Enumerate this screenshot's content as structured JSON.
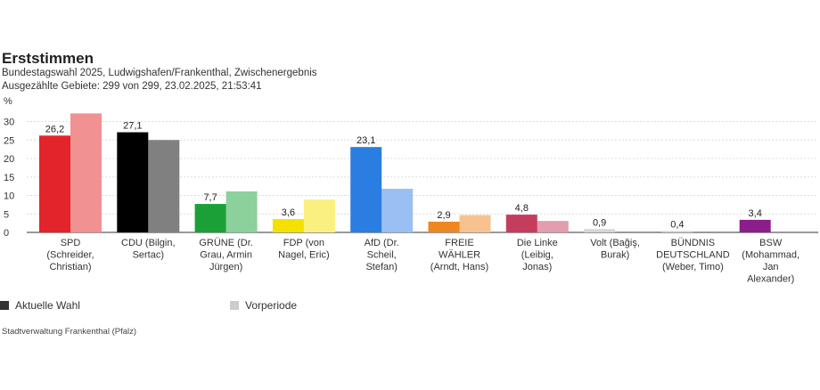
{
  "header": {
    "title": "Erststimmen",
    "subtitle": "Bundestagswahl 2025, Ludwigshafen/Frankenthal, Zwischenergebnis",
    "subtitle2": "Ausgezählte Gebiete: 299 von 299, 23.02.2025, 21:53:41"
  },
  "legend": {
    "current_label": "Aktuelle Wahl",
    "previous_label": "Vorperiode",
    "current_color": "#333333",
    "previous_color": "#cccccc"
  },
  "source": "Stadtverwaltung Frankenthal (Pfalz)",
  "chart_data": {
    "type": "bar",
    "unit": "%",
    "ylim": [
      0,
      33
    ],
    "yticks": [
      0,
      5,
      10,
      15,
      20,
      25,
      30
    ],
    "grid": true,
    "categories": [
      [
        "SPD",
        "(Schreider,",
        "Christian)"
      ],
      [
        "CDU (Bilgin,",
        "Sertac)"
      ],
      [
        "GRÜNE (Dr.",
        "Grau, Armin",
        "Jürgen)"
      ],
      [
        "FDP (von",
        "Nagel, Eric)"
      ],
      [
        "AfD (Dr.",
        "Scheil,",
        "Stefan)"
      ],
      [
        "FREIE",
        "WÄHLER",
        "(Arndt, Hans)"
      ],
      [
        "Die Linke",
        "(Leibig,",
        "Jonas)"
      ],
      [
        "Volt (Bağiş,",
        "Burak)"
      ],
      [
        "BÜNDNIS",
        "DEUTSCHLAND",
        "(Weber, Timo)"
      ],
      [
        "BSW",
        "(Mohammad,",
        "Jan",
        "Alexander)"
      ]
    ],
    "series": [
      {
        "name": "Aktuelle Wahl",
        "values": [
          26.2,
          27.1,
          7.7,
          3.6,
          23.1,
          2.9,
          4.8,
          0.9,
          0.4,
          3.4
        ],
        "labels": [
          "26,2",
          "27,1",
          "7,7",
          "3,6",
          "23,1",
          "2,9",
          "4,8",
          "0,9",
          "0,4",
          "3,4"
        ],
        "colors": [
          "#e3242b",
          "#000000",
          "#1aa037",
          "#f5e100",
          "#2a7de1",
          "#ee8622",
          "#c53d5d",
          "#d6d6d6",
          "#d6d6d6",
          "#8b1e8a"
        ]
      },
      {
        "name": "Vorperiode",
        "values": [
          32.2,
          25.0,
          11.1,
          8.9,
          11.8,
          4.7,
          3.1,
          null,
          null,
          null
        ],
        "colors": [
          "#f29191",
          "#808080",
          "#8cd09b",
          "#faf080",
          "#9abff2",
          "#f7c290",
          "#e29eae",
          null,
          null,
          null
        ]
      }
    ]
  }
}
